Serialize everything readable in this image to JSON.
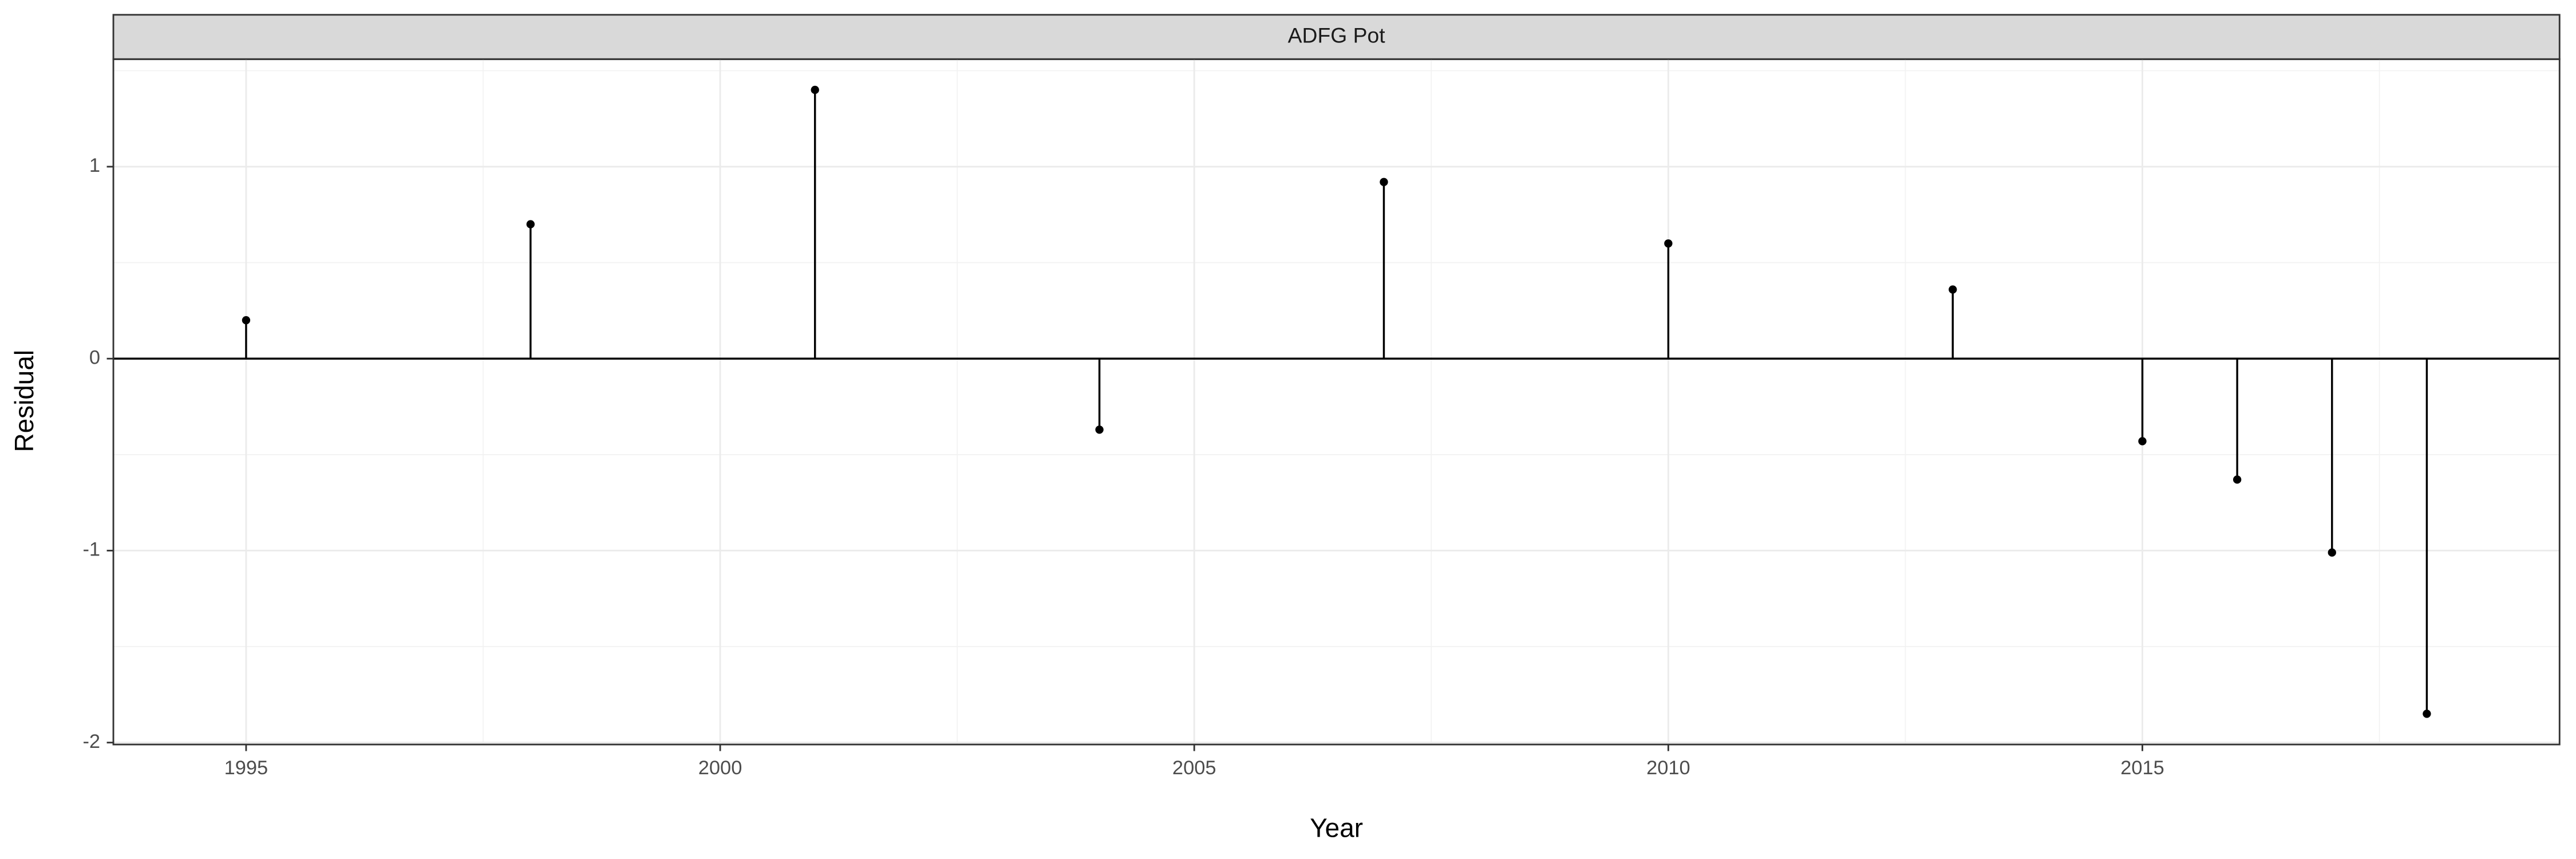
{
  "chart_data": {
    "type": "stem",
    "strip_title": "ADFG Pot",
    "x_label": "Year",
    "y_label": "Residual",
    "x": [
      1995,
      1998,
      2001,
      2004,
      2007,
      2010,
      2013,
      2015,
      2016,
      2017,
      2018
    ],
    "values": [
      0.2,
      0.7,
      1.4,
      -0.37,
      0.92,
      0.6,
      0.36,
      -0.43,
      -0.63,
      -1.01,
      -1.85
    ],
    "color": "#000000",
    "xlim": [
      1993.6,
      2019.4
    ],
    "xticks": [
      1995,
      2000,
      2005,
      2010,
      2015
    ],
    "ylim": [
      -2.01,
      1.56
    ],
    "yticks": [
      -2,
      -1,
      0,
      1
    ],
    "grid": true
  }
}
